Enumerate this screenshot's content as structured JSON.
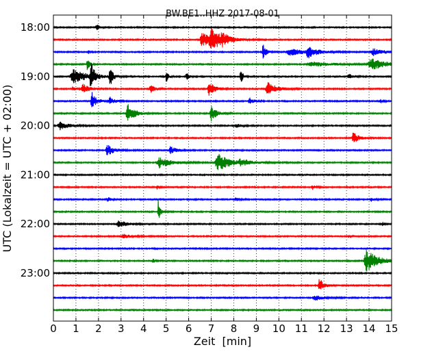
{
  "chart_data": {
    "type": "line",
    "title": "BW.BE1..HHZ 2017-08-01",
    "xlabel": "Zeit  [min]",
    "ylabel": "UTC (Lokalzeit = UTC + 02:00)",
    "xlim": [
      0,
      15
    ],
    "x_ticks": [
      "0",
      "1",
      "2",
      "3",
      "4",
      "5",
      "6",
      "7",
      "8",
      "9",
      "10",
      "11",
      "12",
      "13",
      "14",
      "15"
    ],
    "y_tick_labels": [
      "18:00",
      "19:00",
      "20:00",
      "21:00",
      "22:00",
      "23:00"
    ],
    "grid": "vertical dotted lines at each minute",
    "colors_cycle": [
      "#000000",
      "#ff0000",
      "#0000ff",
      "#008000"
    ],
    "trace_start_interval_min": 15,
    "traces": [
      {
        "start": "18:00",
        "color": "#000000",
        "events": [
          {
            "t": 1.9,
            "a": 5,
            "w": 0.1
          }
        ]
      },
      {
        "start": "18:15",
        "color": "#ff0000",
        "events": [
          {
            "t": 6.6,
            "a": 10,
            "w": 0.35
          },
          {
            "t": 7.0,
            "a": 17,
            "w": 0.3
          },
          {
            "t": 7.5,
            "a": 6,
            "w": 0.3
          }
        ]
      },
      {
        "start": "18:30",
        "color": "#0000ff",
        "events": [
          {
            "t": 1.55,
            "a": 3,
            "w": 0.05
          },
          {
            "t": 9.3,
            "a": 13,
            "w": 0.1
          },
          {
            "t": 10.5,
            "a": 5,
            "w": 0.5
          },
          {
            "t": 11.3,
            "a": 8,
            "w": 0.3
          },
          {
            "t": 14.2,
            "a": 5,
            "w": 0.4
          }
        ]
      },
      {
        "start": "18:45",
        "color": "#008000",
        "events": [
          {
            "t": 1.5,
            "a": 10,
            "w": 0.08
          },
          {
            "t": 11.5,
            "a": 3,
            "w": 0.8
          },
          {
            "t": 14.1,
            "a": 9,
            "w": 0.45
          }
        ]
      },
      {
        "start": "19:00",
        "color": "#000000",
        "events": [
          {
            "t": 0.9,
            "a": 10,
            "w": 0.5
          },
          {
            "t": 1.65,
            "a": 22,
            "w": 0.12
          },
          {
            "t": 2.5,
            "a": 17,
            "w": 0.1
          },
          {
            "t": 5.0,
            "a": 9,
            "w": 0.08
          },
          {
            "t": 5.9,
            "a": 7,
            "w": 0.08
          },
          {
            "t": 8.3,
            "a": 12,
            "w": 0.08
          },
          {
            "t": 13.1,
            "a": 4,
            "w": 0.15
          }
        ]
      },
      {
        "start": "19:15",
        "color": "#ff0000",
        "events": [
          {
            "t": 0.85,
            "a": 3,
            "w": 0.1
          },
          {
            "t": 1.3,
            "a": 8,
            "w": 0.2
          },
          {
            "t": 4.3,
            "a": 6,
            "w": 0.15
          },
          {
            "t": 6.9,
            "a": 11,
            "w": 0.2
          },
          {
            "t": 9.5,
            "a": 10,
            "w": 0.3
          }
        ]
      },
      {
        "start": "19:30",
        "color": "#0000ff",
        "events": [
          {
            "t": 1.7,
            "a": 14,
            "w": 0.15
          },
          {
            "t": 2.5,
            "a": 7,
            "w": 0.15
          },
          {
            "t": 8.7,
            "a": 5,
            "w": 0.15
          },
          {
            "t": 14.5,
            "a": 3,
            "w": 0.1
          }
        ]
      },
      {
        "start": "19:45",
        "color": "#008000",
        "events": [
          {
            "t": 3.3,
            "a": 14,
            "w": 0.25
          },
          {
            "t": 7.0,
            "a": 11,
            "w": 0.2
          }
        ]
      },
      {
        "start": "20:00",
        "color": "#000000",
        "events": [
          {
            "t": 0.3,
            "a": 6,
            "w": 0.3
          },
          {
            "t": 8.1,
            "a": 3,
            "w": 0.15
          }
        ]
      },
      {
        "start": "20:15",
        "color": "#ff0000",
        "events": [
          {
            "t": 13.3,
            "a": 8,
            "w": 0.2
          }
        ]
      },
      {
        "start": "20:30",
        "color": "#0000ff",
        "events": [
          {
            "t": 2.4,
            "a": 8,
            "w": 0.25
          },
          {
            "t": 5.2,
            "a": 6,
            "w": 0.2
          }
        ]
      },
      {
        "start": "20:45",
        "color": "#008000",
        "events": [
          {
            "t": 4.7,
            "a": 8,
            "w": 0.4
          },
          {
            "t": 7.3,
            "a": 13,
            "w": 0.4
          },
          {
            "t": 8.3,
            "a": 4,
            "w": 0.4
          }
        ]
      },
      {
        "start": "21:00",
        "color": "#000000",
        "events": []
      },
      {
        "start": "21:15",
        "color": "#ff0000",
        "events": [
          {
            "t": 4.6,
            "a": 3,
            "w": 0.05
          },
          {
            "t": 11.5,
            "a": 3,
            "w": 0.1
          }
        ]
      },
      {
        "start": "21:30",
        "color": "#0000ff",
        "events": [
          {
            "t": 2.4,
            "a": 4,
            "w": 0.1
          },
          {
            "t": 8.1,
            "a": 3,
            "w": 0.1
          },
          {
            "t": 14.1,
            "a": 3,
            "w": 0.1
          }
        ]
      },
      {
        "start": "21:45",
        "color": "#008000",
        "events": [
          {
            "t": 4.65,
            "a": 17,
            "w": 0.08
          }
        ]
      },
      {
        "start": "22:00",
        "color": "#000000",
        "events": [
          {
            "t": 2.9,
            "a": 5,
            "w": 0.3
          },
          {
            "t": 14.6,
            "a": 4,
            "w": 0.05
          }
        ]
      },
      {
        "start": "22:15",
        "color": "#ff0000",
        "events": [
          {
            "t": 3.1,
            "a": 3,
            "w": 0.3
          },
          {
            "t": 13.1,
            "a": 3,
            "w": 0.05
          }
        ]
      },
      {
        "start": "22:30",
        "color": "#0000ff",
        "events": []
      },
      {
        "start": "22:45",
        "color": "#008000",
        "events": [
          {
            "t": 4.4,
            "a": 5,
            "w": 0.05
          },
          {
            "t": 13.9,
            "a": 16,
            "w": 0.4
          }
        ]
      },
      {
        "start": "23:00",
        "color": "#000000",
        "events": []
      },
      {
        "start": "23:15",
        "color": "#ff0000",
        "events": [
          {
            "t": 11.8,
            "a": 11,
            "w": 0.15
          }
        ]
      },
      {
        "start": "23:30",
        "color": "#0000ff",
        "events": [
          {
            "t": 11.6,
            "a": 4,
            "w": 0.3
          }
        ]
      },
      {
        "start": "23:45",
        "color": "#008000",
        "events": []
      }
    ]
  }
}
